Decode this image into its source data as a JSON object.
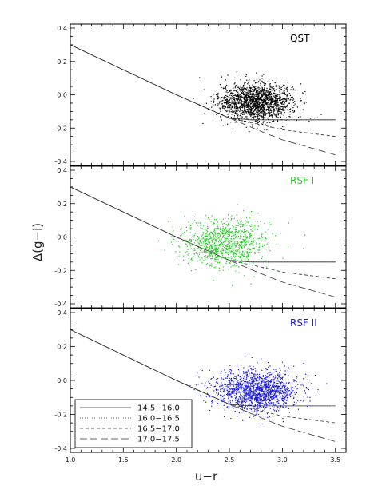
{
  "chart_data": {
    "type": "scatter",
    "xlabel": "u−r",
    "ylabel": "Δ(g−i)",
    "xlim": [
      1.0,
      3.6
    ],
    "ylim": [
      -0.4,
      0.4
    ],
    "x_ticks": [
      "1.0",
      "1.5",
      "2.0",
      "2.5",
      "3.0",
      "3.5"
    ],
    "y_ticks": [
      "-0.4",
      "-0.2",
      "0.0",
      "0.2",
      "0.4"
    ],
    "legend": {
      "placement": "bottom-left of bottom panel",
      "entries": [
        {
          "label": "14.5−16.0",
          "dash": "solid"
        },
        {
          "label": "16.0−16.5",
          "dash": "dotted"
        },
        {
          "label": "16.5−17.0",
          "dash": "short-dash"
        },
        {
          "label": "17.0−17.5",
          "dash": "long-dash"
        }
      ]
    },
    "limit_curves": [
      {
        "label": "14.5−16.0",
        "x": [
          1.0,
          1.5,
          2.0,
          2.5,
          2.7,
          3.0,
          3.5
        ],
        "y": [
          0.3,
          0.15,
          0.0,
          -0.14,
          -0.15,
          -0.15,
          -0.15
        ]
      },
      {
        "label": "16.0−16.5",
        "x": [
          1.0,
          1.5,
          2.0,
          2.5,
          2.78,
          3.0,
          3.5
        ],
        "y": [
          0.3,
          0.15,
          0.0,
          -0.14,
          -0.15,
          -0.15,
          -0.15
        ]
      },
      {
        "label": "16.5−17.0",
        "x": [
          1.0,
          1.5,
          2.0,
          2.5,
          2.8,
          3.0,
          3.5
        ],
        "y": [
          0.3,
          0.15,
          0.0,
          -0.14,
          -0.18,
          -0.21,
          -0.25
        ]
      },
      {
        "label": "17.0−17.5",
        "x": [
          1.0,
          1.5,
          2.0,
          2.5,
          2.8,
          3.0,
          3.5
        ],
        "y": [
          0.3,
          0.15,
          0.0,
          -0.14,
          -0.22,
          -0.27,
          -0.36
        ]
      }
    ],
    "panels": [
      {
        "label": "QST",
        "color": "#000000",
        "points": {
          "count": 1800,
          "mean_x": 2.75,
          "sd_x": 0.17,
          "mean_y": -0.04,
          "sd_y": 0.055
        }
      },
      {
        "label": "RSF I",
        "color": "#22cc22",
        "points": {
          "count": 1000,
          "mean_x": 2.45,
          "sd_x": 0.2,
          "mean_y": -0.03,
          "sd_y": 0.07
        }
      },
      {
        "label": "RSF II",
        "color": "#1a1adb",
        "points": {
          "count": 1500,
          "mean_x": 2.75,
          "sd_x": 0.2,
          "mean_y": -0.06,
          "sd_y": 0.06
        }
      }
    ]
  }
}
